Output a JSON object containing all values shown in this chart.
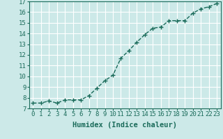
{
  "x": [
    0,
    1,
    2,
    3,
    4,
    5,
    6,
    7,
    8,
    9,
    10,
    11,
    12,
    13,
    14,
    15,
    16,
    17,
    18,
    19,
    20,
    21,
    22,
    23
  ],
  "y": [
    7.5,
    7.5,
    7.7,
    7.5,
    7.8,
    7.8,
    7.8,
    8.2,
    8.9,
    9.6,
    10.1,
    11.7,
    12.4,
    13.2,
    13.9,
    14.5,
    14.6,
    15.2,
    15.2,
    15.2,
    15.9,
    16.3,
    16.5,
    16.8
  ],
  "line_color": "#1a6b5a",
  "marker": "+",
  "marker_size": 4,
  "linewidth": 1.0,
  "linestyle": "--",
  "xlabel": "Humidex (Indice chaleur)",
  "xlim": [
    -0.5,
    23.5
  ],
  "ylim": [
    7,
    17
  ],
  "xticks": [
    0,
    1,
    2,
    3,
    4,
    5,
    6,
    7,
    8,
    9,
    10,
    11,
    12,
    13,
    14,
    15,
    16,
    17,
    18,
    19,
    20,
    21,
    22,
    23
  ],
  "yticks": [
    7,
    8,
    9,
    10,
    11,
    12,
    13,
    14,
    15,
    16,
    17
  ],
  "bg_color": "#cce9e8",
  "grid_color": "#ffffff",
  "tick_fontsize": 6.5,
  "label_fontsize": 7.5
}
